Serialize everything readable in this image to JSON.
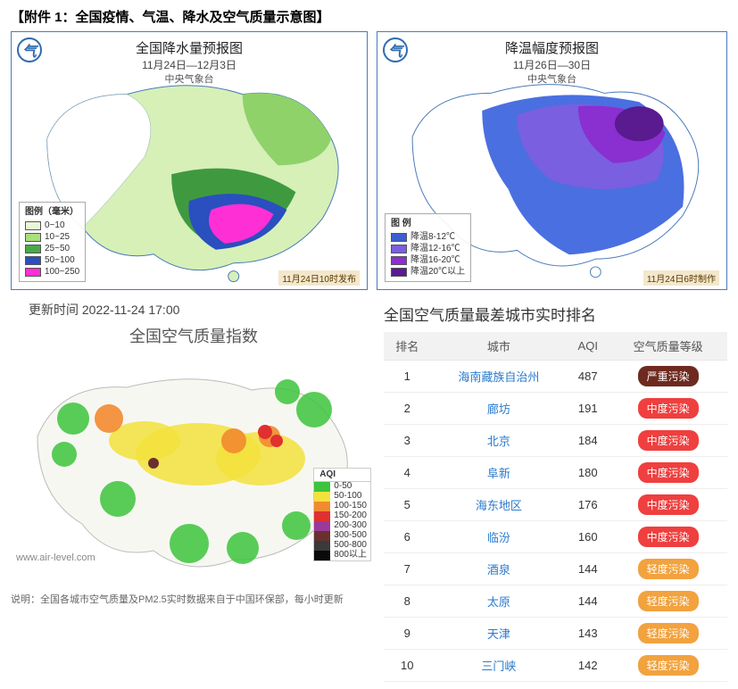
{
  "page_title": "【附件 1：全国疫情、气温、降水及空气质量示意图】",
  "precip_map": {
    "title": "全国降水量预报图",
    "date_range": "11月24日—12月3日",
    "source": "中央气象台",
    "issue_time": "11月24日10时发布",
    "legend_title": "图例（毫米）",
    "legend": [
      {
        "label": "0~10",
        "color": "#e8f7d8"
      },
      {
        "label": "10~25",
        "color": "#a7e07e"
      },
      {
        "label": "25~50",
        "color": "#4aa84a"
      },
      {
        "label": "50~100",
        "color": "#2a4fbf"
      },
      {
        "label": "100~250",
        "color": "#ff2fd6"
      }
    ],
    "map_colors": {
      "outline": "#4a7ab8",
      "land_base": "#f5fbf0",
      "west_dry": "#ffffff",
      "light": "#d6f0b8",
      "mid": "#8fd26a",
      "dark_green": "#3f9a3f",
      "blue": "#2a4fbf",
      "magenta": "#ff2fd6"
    }
  },
  "temp_map": {
    "title": "降温幅度预报图",
    "date_range": "11月26日—30日",
    "source": "中央气象台",
    "issue_time": "11月24日6时制作",
    "legend_title": "图 例",
    "legend": [
      {
        "label": "降温8-12℃",
        "color": "#3b5fd0"
      },
      {
        "label": "降温12-16℃",
        "color": "#7a5fe0"
      },
      {
        "label": "降温16-20℃",
        "color": "#8a2fd0"
      },
      {
        "label": "降温20℃以上",
        "color": "#5a1a90"
      }
    ],
    "map_colors": {
      "outline": "#4a7ab8",
      "land_base": "#ffffff",
      "mild": "#4a6fe0",
      "mid": "#7a5fe0",
      "strong": "#8a2fd0",
      "extreme": "#5a1a90"
    }
  },
  "aqi_map": {
    "update_label": "更新时间 2022-11-24 17:00",
    "title": "全国空气质量指数",
    "watermark": "www.air-level.com",
    "note": "说明：全国各城市空气质量及PM2.5实时数据来自于中国环保部，每小时更新",
    "legend_header": "AQI",
    "legend": [
      {
        "label": "0-50",
        "color": "#3cc43c"
      },
      {
        "label": "50-100",
        "color": "#f2e23c"
      },
      {
        "label": "100-150",
        "color": "#f28a2f"
      },
      {
        "label": "150-200",
        "color": "#e03030"
      },
      {
        "label": "200-300",
        "color": "#9a3a9a"
      },
      {
        "label": "300-500",
        "color": "#6a3030"
      },
      {
        "label": "500-800",
        "color": "#3a3a3a"
      },
      {
        "label": "800以上",
        "color": "#0a0a0a"
      }
    ],
    "blob_colors": {
      "good": "#3cc43c",
      "moderate": "#f2e23c",
      "usg": "#f28a2f",
      "unhealthy": "#e03030",
      "hazard": "#6a3030"
    }
  },
  "rank_table": {
    "title": "全国空气质量最差城市实时排名",
    "columns": [
      "排名",
      "城市",
      "AQI",
      "空气质量等级"
    ],
    "rows": [
      {
        "rank": 1,
        "city": "海南藏族自治州",
        "aqi": 487,
        "level": "严重污染",
        "level_color": "#6e2a1f"
      },
      {
        "rank": 2,
        "city": "廊坊",
        "aqi": 191,
        "level": "中度污染",
        "level_color": "#ef3f3f"
      },
      {
        "rank": 3,
        "city": "北京",
        "aqi": 184,
        "level": "中度污染",
        "level_color": "#ef3f3f"
      },
      {
        "rank": 4,
        "city": "阜新",
        "aqi": 180,
        "level": "中度污染",
        "level_color": "#ef3f3f"
      },
      {
        "rank": 5,
        "city": "海东地区",
        "aqi": 176,
        "level": "中度污染",
        "level_color": "#ef3f3f"
      },
      {
        "rank": 6,
        "city": "临汾",
        "aqi": 160,
        "level": "中度污染",
        "level_color": "#ef3f3f"
      },
      {
        "rank": 7,
        "city": "酒泉",
        "aqi": 144,
        "level": "轻度污染",
        "level_color": "#f2a23f"
      },
      {
        "rank": 8,
        "city": "太原",
        "aqi": 144,
        "level": "轻度污染",
        "level_color": "#f2a23f"
      },
      {
        "rank": 9,
        "city": "天津",
        "aqi": 143,
        "level": "轻度污染",
        "level_color": "#f2a23f"
      },
      {
        "rank": 10,
        "city": "三门峡",
        "aqi": 142,
        "level": "轻度污染",
        "level_color": "#f2a23f"
      }
    ]
  }
}
